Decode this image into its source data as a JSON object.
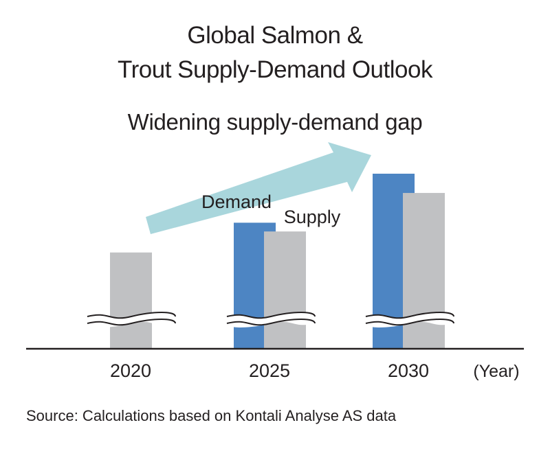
{
  "title_lines": [
    "Global Salmon &",
    "Trout Supply-Demand Outlook"
  ],
  "annotation": "Widening supply-demand gap",
  "source": "Source: Calculations based on Kontali Analyse AS data",
  "colors": {
    "demand": "#4d85c3",
    "supply": "#c0c1c3",
    "arrow": "#a9d6dc",
    "axis": "#231f20"
  },
  "chart_data": {
    "type": "bar",
    "title": "Global Salmon & Trout Supply-Demand Outlook",
    "categories": [
      "2020",
      "2025",
      "2030"
    ],
    "x_unit_label": "(Year)",
    "series": [
      {
        "name": "Demand",
        "values": [
          null,
          72,
          100
        ]
      },
      {
        "name": "Supply",
        "values": [
          55,
          67,
          89
        ]
      }
    ],
    "y_axis_broken": true,
    "y_scale": "relative",
    "ylim": [
      0,
      100
    ],
    "legend_placement": "inline labels above 2025 bars",
    "grid": false
  }
}
